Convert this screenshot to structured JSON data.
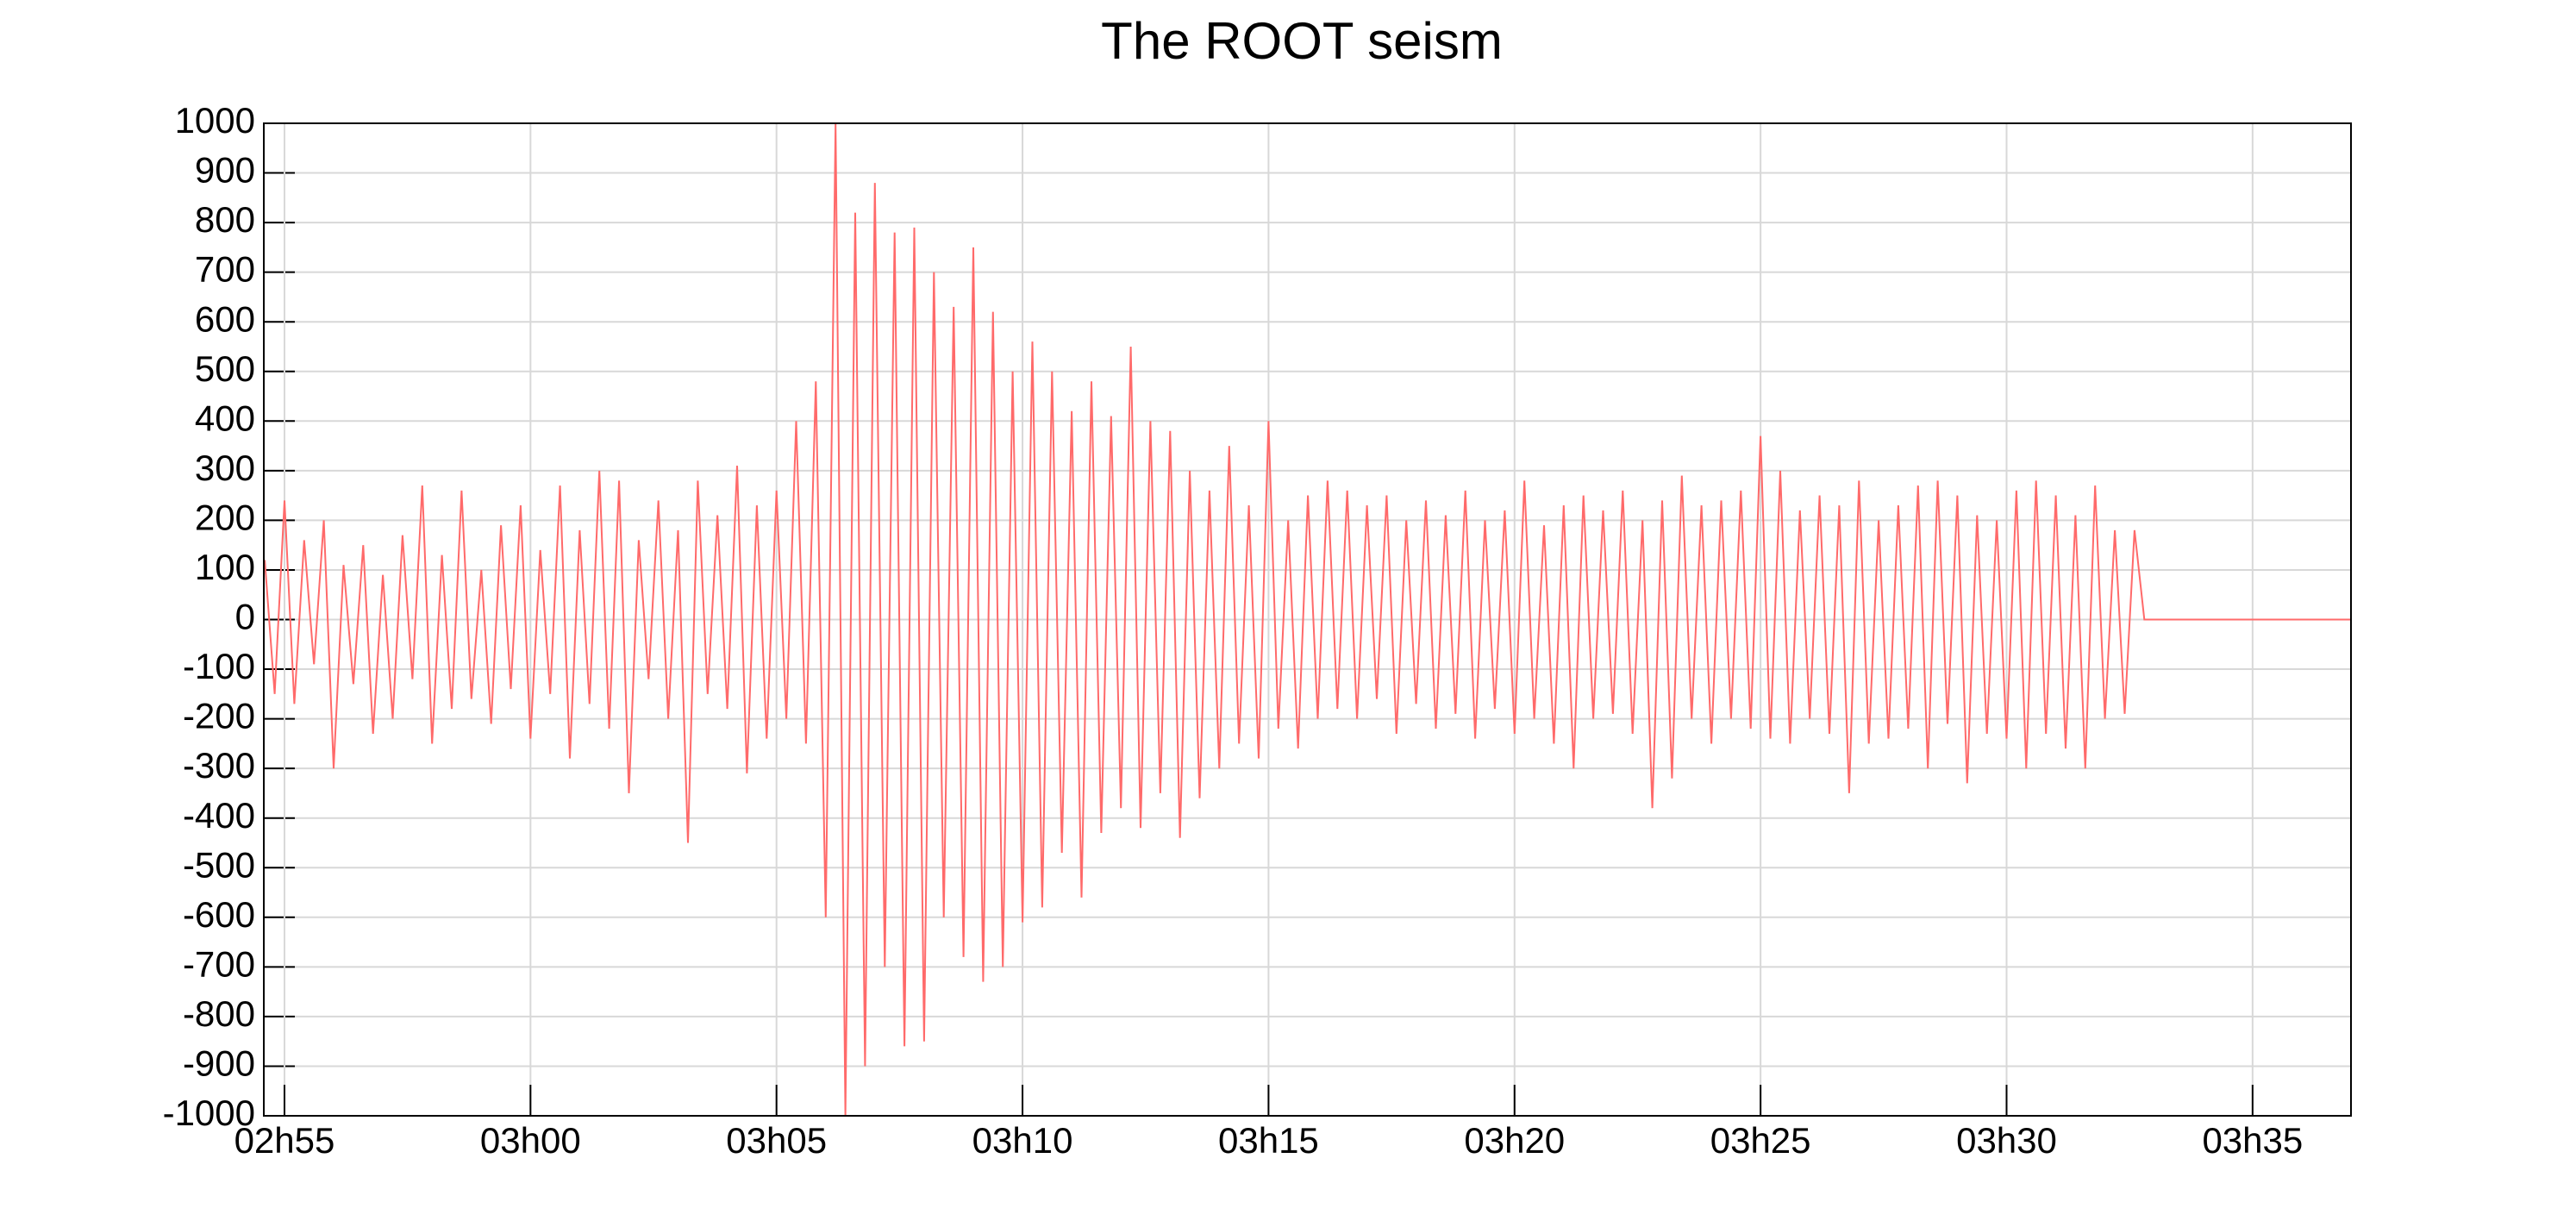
{
  "chart_data": {
    "type": "line",
    "title": "The ROOT seism",
    "color": "#ff6a6a",
    "grid": true,
    "xlim": [
      -0.42,
      42.0
    ],
    "xticks": [
      {
        "value": 0,
        "label": "02h55"
      },
      {
        "value": 5,
        "label": "03h00"
      },
      {
        "value": 10,
        "label": "03h05"
      },
      {
        "value": 15,
        "label": "03h10"
      },
      {
        "value": 20,
        "label": "03h15"
      },
      {
        "value": 25,
        "label": "03h20"
      },
      {
        "value": 30,
        "label": "03h25"
      },
      {
        "value": 35,
        "label": "03h30"
      },
      {
        "value": 40,
        "label": "03h35"
      }
    ],
    "ylim": [
      -1000,
      1000
    ],
    "yticks": [
      -1000,
      -900,
      -800,
      -700,
      -600,
      -500,
      -400,
      -300,
      -200,
      -100,
      0,
      100,
      200,
      300,
      400,
      500,
      600,
      700,
      800,
      900,
      1000
    ],
    "x": [
      -0.4,
      -0.2,
      0,
      0.2,
      0.4,
      0.6,
      0.8,
      1,
      1.2,
      1.4,
      1.6,
      1.8,
      2,
      2.2,
      2.4,
      2.6,
      2.8,
      3,
      3.2,
      3.4,
      3.6,
      3.8,
      4,
      4.2,
      4.4,
      4.6,
      4.8,
      5,
      5.2,
      5.4,
      5.6,
      5.8,
      6,
      6.2,
      6.4,
      6.6,
      6.8,
      7,
      7.2,
      7.4,
      7.6,
      7.8,
      8,
      8.2,
      8.4,
      8.6,
      8.8,
      9,
      9.2,
      9.4,
      9.6,
      9.8,
      10,
      10.2,
      10.4,
      10.6,
      10.8,
      11,
      11.2,
      11.4,
      11.6,
      11.8,
      12,
      12.2,
      12.4,
      12.6,
      12.8,
      13,
      13.2,
      13.4,
      13.6,
      13.8,
      14,
      14.2,
      14.4,
      14.6,
      14.8,
      15,
      15.2,
      15.4,
      15.6,
      15.8,
      16,
      16.2,
      16.4,
      16.6,
      16.8,
      17,
      17.2,
      17.4,
      17.6,
      17.8,
      18,
      18.2,
      18.4,
      18.6,
      18.8,
      19,
      19.2,
      19.4,
      19.6,
      19.8,
      20,
      20.2,
      20.4,
      20.6,
      20.8,
      21,
      21.2,
      21.4,
      21.6,
      21.8,
      22,
      22.2,
      22.4,
      22.6,
      22.8,
      23,
      23.2,
      23.4,
      23.6,
      23.8,
      24,
      24.2,
      24.4,
      24.6,
      24.8,
      25,
      25.2,
      25.4,
      25.6,
      25.8,
      26,
      26.2,
      26.4,
      26.6,
      26.8,
      27,
      27.2,
      27.4,
      27.6,
      27.8,
      28,
      28.2,
      28.4,
      28.6,
      28.8,
      29,
      29.2,
      29.4,
      29.6,
      29.8,
      30,
      30.2,
      30.4,
      30.6,
      30.8,
      31,
      31.2,
      31.4,
      31.6,
      31.8,
      32,
      32.2,
      32.4,
      32.6,
      32.8,
      33,
      33.2,
      33.4,
      33.6,
      33.8,
      34,
      34.2,
      34.4,
      34.6,
      34.8,
      35,
      35.2,
      35.4,
      35.6,
      35.8,
      36,
      36.2,
      36.4,
      36.6,
      36.8,
      37,
      37.2,
      37.4,
      37.6,
      37.8,
      42
    ],
    "values": [
      120,
      -150,
      240,
      -170,
      160,
      -90,
      200,
      -300,
      110,
      -130,
      150,
      -230,
      90,
      -200,
      170,
      -120,
      270,
      -250,
      130,
      -180,
      260,
      -160,
      100,
      -210,
      190,
      -140,
      230,
      -240,
      140,
      -150,
      270,
      -280,
      180,
      -170,
      300,
      -220,
      280,
      -350,
      160,
      -120,
      240,
      -200,
      180,
      -450,
      280,
      -150,
      210,
      -180,
      310,
      -310,
      230,
      -240,
      260,
      -200,
      400,
      -250,
      480,
      -600,
      1000,
      -1000,
      820,
      -900,
      880,
      -700,
      780,
      -860,
      790,
      -850,
      700,
      -600,
      630,
      -680,
      750,
      -730,
      620,
      -700,
      500,
      -610,
      560,
      -580,
      500,
      -470,
      420,
      -560,
      480,
      -430,
      410,
      -380,
      550,
      -420,
      400,
      -350,
      380,
      -440,
      300,
      -360,
      260,
      -300,
      350,
      -250,
      230,
      -280,
      400,
      -220,
      200,
      -260,
      250,
      -200,
      280,
      -180,
      260,
      -200,
      230,
      -160,
      250,
      -230,
      200,
      -170,
      240,
      -220,
      210,
      -190,
      260,
      -240,
      200,
      -180,
      220,
      -230,
      280,
      -200,
      190,
      -250,
      230,
      -300,
      250,
      -200,
      220,
      -190,
      260,
      -230,
      200,
      -380,
      240,
      -320,
      290,
      -200,
      230,
      -250,
      240,
      -200,
      260,
      -220,
      370,
      -240,
      300,
      -250,
      220,
      -200,
      250,
      -230,
      230,
      -350,
      280,
      -250,
      200,
      -240,
      230,
      -220,
      270,
      -300,
      280,
      -210,
      250,
      -330,
      210,
      -230,
      200,
      -240,
      260,
      -300,
      280,
      -230,
      250,
      -260,
      210,
      -300,
      270,
      -200,
      180,
      -190,
      180,
      0,
      0
    ]
  }
}
